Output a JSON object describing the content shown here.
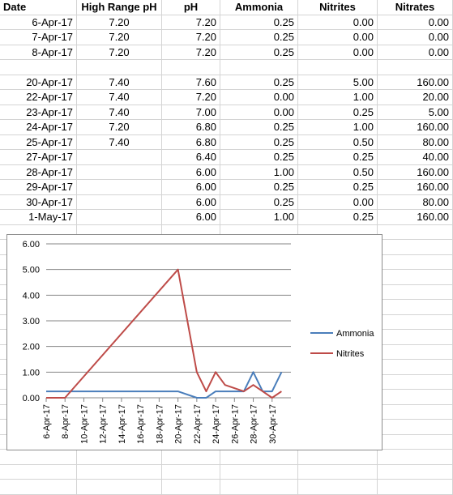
{
  "sheet": {
    "columns": [
      "Date",
      "High Range pH",
      "pH",
      "Ammonia",
      "Nitrites",
      "Nitrates"
    ],
    "rows": [
      [
        "6-Apr-17",
        "7.20",
        "7.20",
        "0.25",
        "0.00",
        "0.00"
      ],
      [
        "7-Apr-17",
        "7.20",
        "7.20",
        "0.25",
        "0.00",
        "0.00"
      ],
      [
        "8-Apr-17",
        "7.20",
        "7.20",
        "0.25",
        "0.00",
        "0.00"
      ],
      [
        "",
        "",
        "",
        "",
        "",
        ""
      ],
      [
        "20-Apr-17",
        "7.40",
        "7.60",
        "0.25",
        "5.00",
        "160.00"
      ],
      [
        "22-Apr-17",
        "7.40",
        "7.20",
        "0.00",
        "1.00",
        "20.00"
      ],
      [
        "23-Apr-17",
        "7.40",
        "7.00",
        "0.00",
        "0.25",
        "5.00"
      ],
      [
        "24-Apr-17",
        "7.20",
        "6.80",
        "0.25",
        "1.00",
        "160.00"
      ],
      [
        "25-Apr-17",
        "7.40",
        "6.80",
        "0.25",
        "0.50",
        "80.00"
      ],
      [
        "27-Apr-17",
        "",
        "6.40",
        "0.25",
        "0.25",
        "40.00"
      ],
      [
        "28-Apr-17",
        "",
        "6.00",
        "1.00",
        "0.50",
        "160.00"
      ],
      [
        "29-Apr-17",
        "",
        "6.00",
        "0.25",
        "0.25",
        "160.00"
      ],
      [
        "30-Apr-17",
        "",
        "6.00",
        "0.25",
        "0.00",
        "80.00"
      ],
      [
        "1-May-17",
        "",
        "6.00",
        "1.00",
        "0.25",
        "160.00"
      ]
    ]
  },
  "chart_data": {
    "type": "line",
    "x": [
      "2017-04-06",
      "2017-04-07",
      "2017-04-08",
      "2017-04-20",
      "2017-04-22",
      "2017-04-23",
      "2017-04-24",
      "2017-04-25",
      "2017-04-27",
      "2017-04-28",
      "2017-04-29",
      "2017-04-30",
      "2017-05-01"
    ],
    "x_tick_labels": [
      "6-Apr-17",
      "8-Apr-17",
      "10-Apr-17",
      "12-Apr-17",
      "14-Apr-17",
      "16-Apr-17",
      "18-Apr-17",
      "20-Apr-17",
      "22-Apr-17",
      "24-Apr-17",
      "26-Apr-17",
      "28-Apr-17",
      "30-Apr-17"
    ],
    "y_tick_labels": [
      "0.00",
      "1.00",
      "2.00",
      "3.00",
      "4.00",
      "5.00",
      "6.00"
    ],
    "ylim": [
      0,
      6
    ],
    "grid": true,
    "legend_position": "right",
    "series": [
      {
        "name": "Ammonia",
        "color": "#4a7ebb",
        "values": [
          0.25,
          0.25,
          0.25,
          0.25,
          0,
          0,
          0.25,
          0.25,
          0.25,
          1,
          0.25,
          0.25,
          1
        ]
      },
      {
        "name": "Nitrites",
        "color": "#be4b48",
        "values": [
          0,
          0,
          0,
          5,
          1,
          0.25,
          1,
          0.5,
          0.25,
          0.5,
          0.25,
          0,
          0.25
        ]
      }
    ]
  }
}
